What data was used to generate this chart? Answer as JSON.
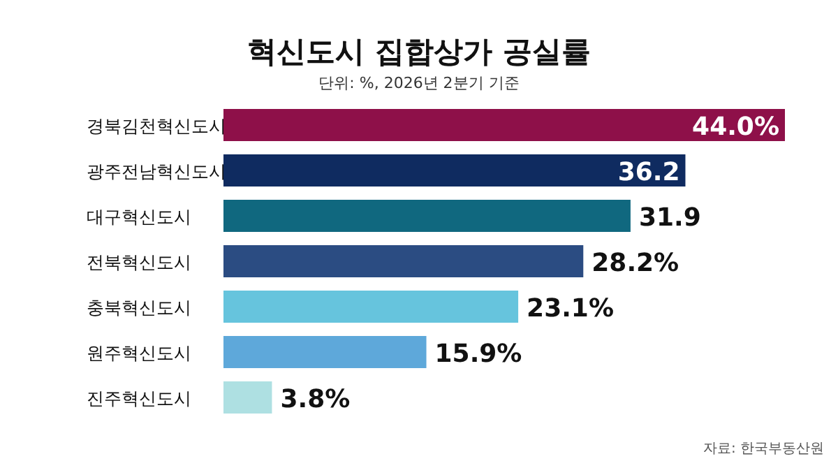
{
  "chart_data": {
    "type": "bar",
    "orientation": "horizontal",
    "title": "혁신도시 집합상가 공실률",
    "subtitle": "단위: %, 2026년 2분기 기준",
    "categories": [
      "경북김천혁신도시",
      "광주전남혁신도시",
      "대구혁신도시",
      "전북혁신도시",
      "충북혁신도시",
      "원주혁신도시",
      "진주혁신도시"
    ],
    "values": [
      44.0,
      36.2,
      31.9,
      28.2,
      23.1,
      15.9,
      3.8
    ],
    "colors": [
      "#8e1049",
      "#0f2b60",
      "#10687f",
      "#2b4c82",
      "#66c4dd",
      "#5ea8da",
      "#aee0e2"
    ],
    "value_labels": [
      "44.0%",
      "36.2",
      "31.9",
      "28.2%",
      "23.1%",
      "15.9%",
      "3.8%"
    ],
    "xlim": [
      0,
      44.0
    ],
    "annotations": [
      "자료: 한국부동산원"
    ]
  }
}
